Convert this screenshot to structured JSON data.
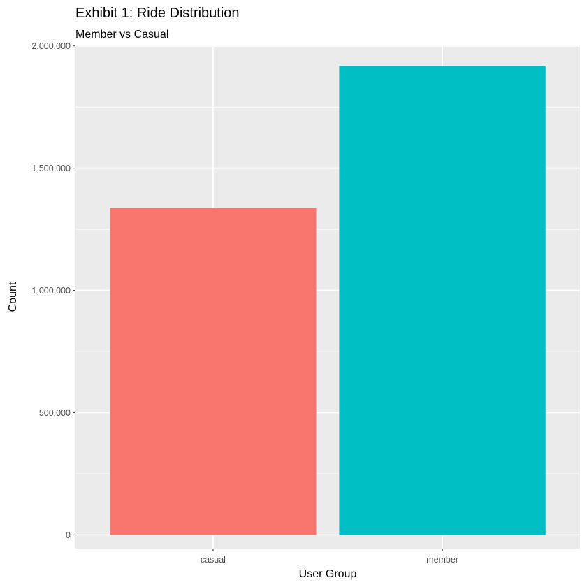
{
  "chart_data": {
    "type": "bar",
    "title": "Exhibit 1: Ride Distribution",
    "subtitle": "Member vs Casual",
    "xlabel": "User Group",
    "ylabel": "Count",
    "categories": [
      "casual",
      "member"
    ],
    "values": [
      1338000,
      1918000
    ],
    "colors": [
      "#F8766D",
      "#00BFC4"
    ],
    "ylim": [
      -56000,
      2005000
    ],
    "yticks": [
      0,
      500000,
      1000000,
      1500000,
      2000000
    ],
    "ytick_labels": [
      "0",
      "500,000",
      "1,000,000",
      "1,500,000",
      "2,000,000"
    ],
    "grid": true,
    "panel_background": "#EBEBEB",
    "grid_color": "#FFFFFF"
  }
}
